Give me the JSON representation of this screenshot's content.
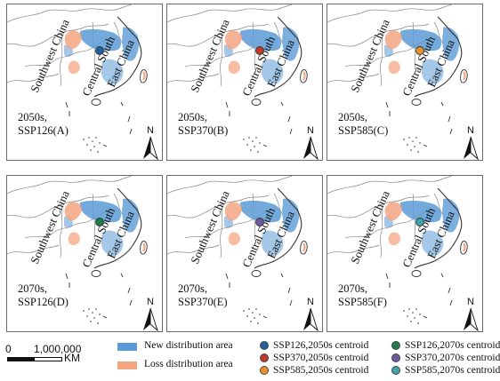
{
  "regions": {
    "southwest": "Southwest China",
    "central": "Central South",
    "east": "East China"
  },
  "north_label": "N",
  "colors": {
    "new_area": "#5b9bd5",
    "loss_area": "#f4a582",
    "border": "#7a7a7a",
    "coast": "#333333"
  },
  "panels": [
    {
      "period": "2050s,",
      "scenario": "SSP126(A)",
      "centroid_color": "#1f5f9e"
    },
    {
      "period": "2050s,",
      "scenario": "SSP370(B)",
      "centroid_color": "#c0392b"
    },
    {
      "period": "2050s,",
      "scenario": "SSP585(C)",
      "centroid_color": "#e8912d"
    },
    {
      "period": "2070s,",
      "scenario": "SSP126(D)",
      "centroid_color": "#1e7d4a"
    },
    {
      "period": "2070s,",
      "scenario": "SSP370(E)",
      "centroid_color": "#6c5a9e"
    },
    {
      "period": "2070s,",
      "scenario": "SSP585(F)",
      "centroid_color": "#3fa5a8"
    }
  ],
  "legend": {
    "scale_zero": "0",
    "scale_value": "1,000,000",
    "scale_unit": "KM",
    "new_area": "New distribution area",
    "loss_area": "Loss distribution area",
    "centroids": [
      {
        "label": "SSP126,2050s centroid",
        "color": "#1f5f9e"
      },
      {
        "label": "SSP370,2050s centroid",
        "color": "#c0392b"
      },
      {
        "label": "SSP585,2050s centroid",
        "color": "#e8912d"
      },
      {
        "label": "SSP126,2070s centroid",
        "color": "#1e7d4a"
      },
      {
        "label": "SSP370,2070s centroid",
        "color": "#6c5a9e"
      },
      {
        "label": "SSP585,2070s centroid",
        "color": "#3fa5a8"
      }
    ]
  }
}
